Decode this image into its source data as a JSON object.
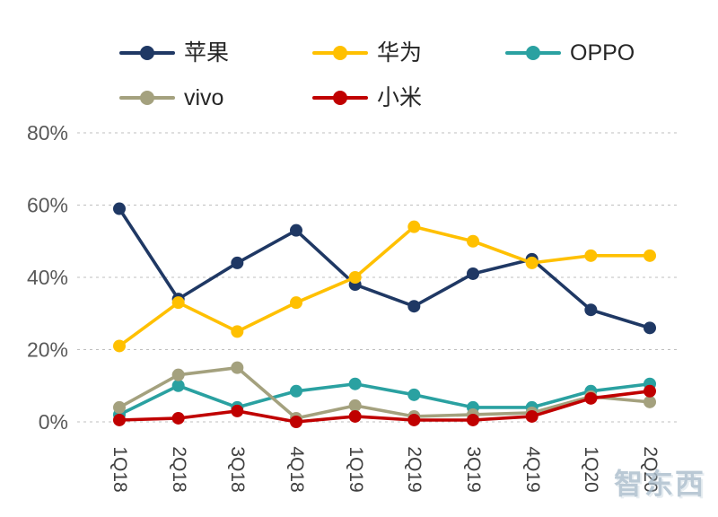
{
  "watermark": {
    "text": "智东西"
  },
  "chart_data": {
    "type": "line",
    "title": "",
    "xlabel": "",
    "ylabel": "",
    "ylim": [
      0,
      80
    ],
    "grid": "horizontal-dashed",
    "legend_position": "top",
    "categories": [
      "1Q18",
      "2Q18",
      "3Q18",
      "4Q18",
      "1Q19",
      "2Q19",
      "3Q19",
      "4Q19",
      "1Q20",
      "2Q20"
    ],
    "yticks": [
      {
        "value": 0,
        "label": "0%"
      },
      {
        "value": 20,
        "label": "20%"
      },
      {
        "value": 40,
        "label": "40%"
      },
      {
        "value": 60,
        "label": "60%"
      },
      {
        "value": 80,
        "label": "80%"
      }
    ],
    "series": [
      {
        "name": "苹果",
        "color": "#1F3864",
        "values": [
          59,
          34,
          44,
          53,
          38,
          32,
          41,
          45,
          31,
          26
        ]
      },
      {
        "name": "华为",
        "color": "#FFC000",
        "values": [
          21,
          33,
          25,
          33,
          40,
          54,
          50,
          44,
          46,
          46
        ]
      },
      {
        "name": "OPPO",
        "color": "#2AA1A1",
        "values": [
          2,
          10,
          4,
          8.5,
          10.5,
          7.5,
          4,
          4,
          8.5,
          10.5
        ]
      },
      {
        "name": "vivo",
        "color": "#A4A17E",
        "values": [
          4,
          13,
          15,
          1,
          4.5,
          1.5,
          2,
          2.5,
          7,
          5.5
        ]
      },
      {
        "name": "小米",
        "color": "#C00000",
        "values": [
          0.5,
          1,
          3,
          0,
          1.5,
          0.5,
          0.5,
          1.5,
          6.5,
          8.5
        ]
      }
    ]
  }
}
